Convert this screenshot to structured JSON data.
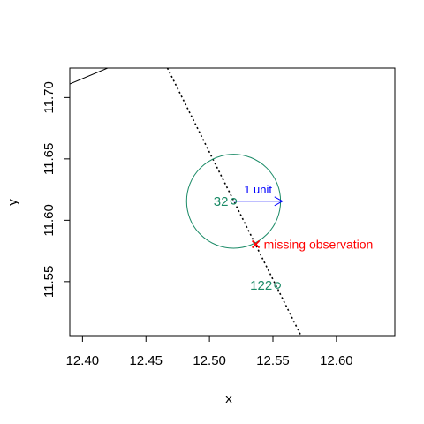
{
  "chart_data": {
    "type": "scatter",
    "xlabel": "x",
    "ylabel": "y",
    "xlim": [
      12.39,
      12.646
    ],
    "ylim": [
      11.506,
      11.724
    ],
    "xticks": [
      12.4,
      12.45,
      12.5,
      12.55,
      12.6
    ],
    "xtick_labels": [
      "12.40",
      "12.45",
      "12.50",
      "12.55",
      "12.60"
    ],
    "yticks": [
      11.55,
      11.6,
      11.65,
      11.7
    ],
    "ytick_labels": [
      "11.55",
      "11.60",
      "11.65",
      "11.70"
    ],
    "grid": false,
    "points": [
      {
        "label": "32",
        "x": 12.519,
        "y": 11.6155,
        "color": "#1a8a66"
      },
      {
        "label": "122",
        "x": 12.5536,
        "y": 11.547,
        "color": "#1a8a66"
      }
    ],
    "missing_observation": {
      "label": "missing observation",
      "x": 12.5365,
      "y": 11.5805,
      "color": "#ff0000"
    },
    "circle": {
      "center_x": 12.519,
      "center_y": 11.6155,
      "radius": 0.037,
      "color": "#1a8a66"
    },
    "unit_arrow": {
      "label": "1 unit",
      "x0": 12.519,
      "y0": 11.6155,
      "x1": 12.5575,
      "y1": 11.6155,
      "color": "#0000ff"
    },
    "dotted_line": {
      "x0": 12.4669,
      "y0": 11.724,
      "x1": 12.5721,
      "y1": 11.506
    },
    "solid_line": {
      "x0": 12.39,
      "y0": 11.711,
      "x1": 12.4198,
      "y1": 11.724
    }
  }
}
